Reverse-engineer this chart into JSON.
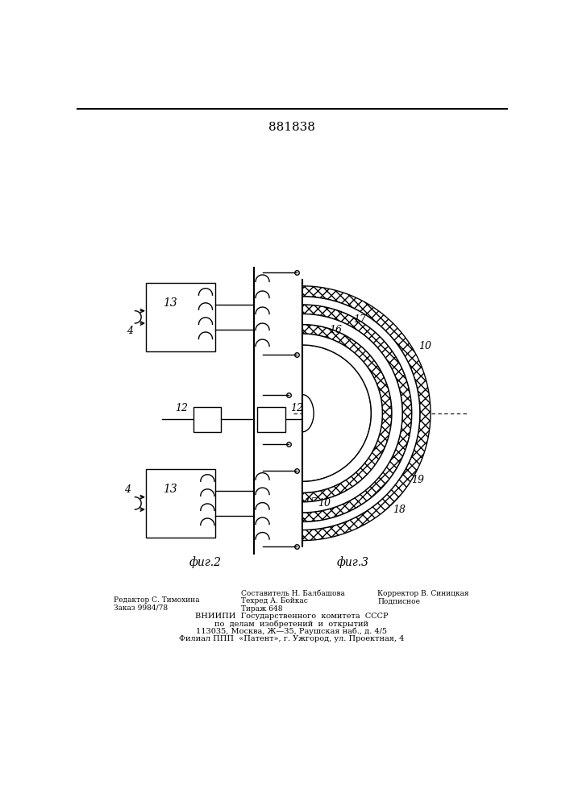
{
  "patent_number": "881838",
  "fig2_label": "фиг.2",
  "fig3_label": "фиг.3",
  "background_color": "#ffffff",
  "line_color": "#000000",
  "footer_line1_left": "Редактор С. Тимохина",
  "footer_line2_left": "Заказ 9984/78",
  "footer_line1_center": "Составитель Н. Балбашова",
  "footer_line2_center": "Техред А. Бойкас",
  "footer_line3_center": "Тираж 648",
  "footer_line1_right": "Корректор В. Синицкая",
  "footer_line2_right": "Подписное",
  "footer_vniiipi1": "ВНИИПИ  Государственного  комитета  СССР",
  "footer_vniiipi2": "по  делам  изобретений  и  открытий",
  "footer_vniiipi3": "113035, Москва, Ж—35, Раушская наб., д. 4/5",
  "footer_vniiipi4": "Филиал ППП  «Патент», г. Ужгород, ул. Проектная, 4"
}
